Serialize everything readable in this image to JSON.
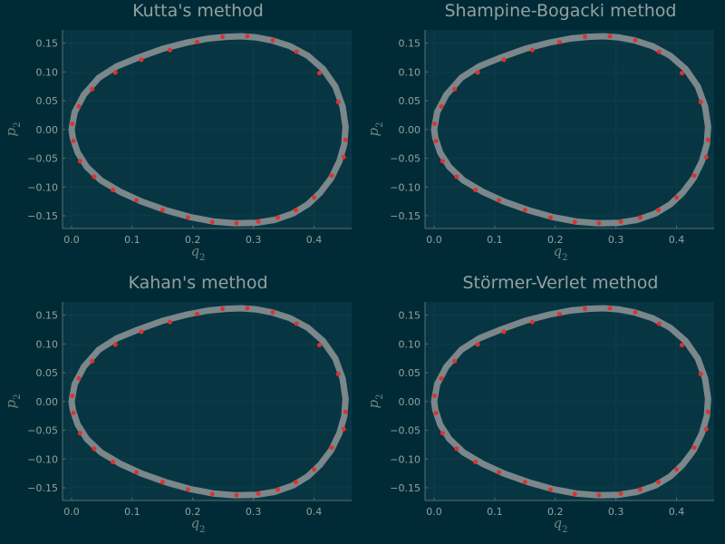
{
  "chart_data": [
    {
      "type": "line",
      "title": "Kutta's method",
      "xlabel": "q",
      "xlabel_sub": "2",
      "ylabel": "p",
      "ylabel_sub": "2",
      "xlim": [
        -0.015,
        0.462
      ],
      "ylim": [
        -0.172,
        0.173
      ],
      "xticks": [
        0.0,
        0.1,
        0.2,
        0.3,
        0.4
      ],
      "xtick_labels": [
        "0.0",
        "0.1",
        "0.2",
        "0.3",
        "0.4"
      ],
      "yticks": [
        -0.15,
        -0.1,
        -0.05,
        0.0,
        0.05,
        0.1,
        0.15
      ],
      "ytick_labels": [
        "−0.15",
        "−0.10",
        "−0.05",
        "0.00",
        "0.05",
        "0.10",
        "0.15"
      ],
      "grid": true,
      "series": [
        {
          "style": "thick-line",
          "color": "#7b878a",
          "x": [
            0.0,
            0.005,
            0.02,
            0.045,
            0.075,
            0.11,
            0.15,
            0.19,
            0.225,
            0.255,
            0.28,
            0.305,
            0.33,
            0.36,
            0.39,
            0.415,
            0.435,
            0.447,
            0.452,
            0.45,
            0.442,
            0.428,
            0.41,
            0.39,
            0.365,
            0.335,
            0.305,
            0.27,
            0.235,
            0.195,
            0.155,
            0.115,
            0.08,
            0.048,
            0.025,
            0.01,
            0.002,
            0.0
          ],
          "y": [
            0.0,
            0.03,
            0.06,
            0.09,
            0.11,
            0.125,
            0.14,
            0.151,
            0.158,
            0.161,
            0.162,
            0.16,
            0.155,
            0.145,
            0.128,
            0.105,
            0.075,
            0.04,
            0.005,
            -0.025,
            -0.055,
            -0.085,
            -0.11,
            -0.13,
            -0.146,
            -0.157,
            -0.162,
            -0.163,
            -0.16,
            -0.152,
            -0.14,
            -0.125,
            -0.108,
            -0.088,
            -0.065,
            -0.04,
            -0.015,
            0.0
          ]
        },
        {
          "style": "markers",
          "color": "#dc322f",
          "x": [
            0.001,
            0.012,
            0.034,
            0.072,
            0.115,
            0.162,
            0.207,
            0.249,
            0.29,
            0.332,
            0.371,
            0.409,
            0.44,
            0.452,
            0.449,
            0.429,
            0.4,
            0.37,
            0.34,
            0.308,
            0.272,
            0.232,
            0.192,
            0.15,
            0.107,
            0.068,
            0.037,
            0.014,
            0.003
          ],
          "y": [
            0.01,
            0.04,
            0.07,
            0.099,
            0.121,
            0.138,
            0.152,
            0.161,
            0.162,
            0.155,
            0.135,
            0.098,
            0.048,
            -0.018,
            -0.048,
            -0.08,
            -0.118,
            -0.14,
            -0.153,
            -0.16,
            -0.163,
            -0.161,
            -0.153,
            -0.14,
            -0.123,
            -0.105,
            -0.082,
            -0.055,
            -0.02
          ]
        }
      ]
    },
    {
      "type": "line",
      "title": "Shampine-Bogacki method",
      "xlabel": "q",
      "xlabel_sub": "2",
      "ylabel": "p",
      "ylabel_sub": "2",
      "xlim": [
        -0.015,
        0.462
      ],
      "ylim": [
        -0.172,
        0.173
      ],
      "xticks": [
        0.0,
        0.1,
        0.2,
        0.3,
        0.4
      ],
      "xtick_labels": [
        "0.0",
        "0.1",
        "0.2",
        "0.3",
        "0.4"
      ],
      "yticks": [
        -0.15,
        -0.1,
        -0.05,
        0.0,
        0.05,
        0.1,
        0.15
      ],
      "ytick_labels": [
        "−0.15",
        "−0.10",
        "−0.05",
        "0.00",
        "0.05",
        "0.10",
        "0.15"
      ],
      "grid": true,
      "series": [
        {
          "style": "thick-line",
          "color": "#7b878a",
          "x": [
            0.0,
            0.005,
            0.02,
            0.045,
            0.075,
            0.11,
            0.15,
            0.19,
            0.225,
            0.255,
            0.28,
            0.305,
            0.33,
            0.36,
            0.39,
            0.415,
            0.435,
            0.447,
            0.452,
            0.45,
            0.442,
            0.428,
            0.41,
            0.39,
            0.365,
            0.335,
            0.305,
            0.27,
            0.235,
            0.195,
            0.155,
            0.115,
            0.08,
            0.048,
            0.025,
            0.01,
            0.002,
            0.0
          ],
          "y": [
            0.0,
            0.03,
            0.06,
            0.09,
            0.11,
            0.125,
            0.14,
            0.151,
            0.158,
            0.161,
            0.162,
            0.16,
            0.155,
            0.145,
            0.128,
            0.105,
            0.075,
            0.04,
            0.005,
            -0.025,
            -0.055,
            -0.085,
            -0.11,
            -0.13,
            -0.146,
            -0.157,
            -0.162,
            -0.163,
            -0.16,
            -0.152,
            -0.14,
            -0.125,
            -0.108,
            -0.088,
            -0.065,
            -0.04,
            -0.015,
            0.0
          ]
        },
        {
          "style": "markers",
          "color": "#dc322f",
          "x": [
            0.001,
            0.012,
            0.034,
            0.072,
            0.115,
            0.162,
            0.207,
            0.249,
            0.29,
            0.332,
            0.371,
            0.409,
            0.44,
            0.452,
            0.449,
            0.429,
            0.4,
            0.37,
            0.34,
            0.308,
            0.272,
            0.232,
            0.192,
            0.15,
            0.107,
            0.068,
            0.037,
            0.014,
            0.003
          ],
          "y": [
            0.01,
            0.04,
            0.07,
            0.099,
            0.121,
            0.138,
            0.152,
            0.161,
            0.162,
            0.155,
            0.135,
            0.098,
            0.048,
            -0.018,
            -0.048,
            -0.08,
            -0.118,
            -0.14,
            -0.153,
            -0.16,
            -0.163,
            -0.161,
            -0.153,
            -0.14,
            -0.123,
            -0.105,
            -0.082,
            -0.055,
            -0.02
          ]
        }
      ]
    },
    {
      "type": "line",
      "title": "Kahan's method",
      "xlabel": "q",
      "xlabel_sub": "2",
      "ylabel": "p",
      "ylabel_sub": "2",
      "xlim": [
        -0.015,
        0.462
      ],
      "ylim": [
        -0.172,
        0.173
      ],
      "xticks": [
        0.0,
        0.1,
        0.2,
        0.3,
        0.4
      ],
      "xtick_labels": [
        "0.0",
        "0.1",
        "0.2",
        "0.3",
        "0.4"
      ],
      "yticks": [
        -0.15,
        -0.1,
        -0.05,
        0.0,
        0.05,
        0.1,
        0.15
      ],
      "ytick_labels": [
        "−0.15",
        "−0.10",
        "−0.05",
        "0.00",
        "0.05",
        "0.10",
        "0.15"
      ],
      "grid": true,
      "series": [
        {
          "style": "thick-line",
          "color": "#7b878a",
          "x": [
            0.0,
            0.005,
            0.02,
            0.045,
            0.075,
            0.11,
            0.15,
            0.19,
            0.225,
            0.255,
            0.28,
            0.305,
            0.33,
            0.36,
            0.39,
            0.415,
            0.435,
            0.447,
            0.452,
            0.45,
            0.442,
            0.428,
            0.41,
            0.39,
            0.365,
            0.335,
            0.305,
            0.27,
            0.235,
            0.195,
            0.155,
            0.115,
            0.08,
            0.048,
            0.025,
            0.01,
            0.002,
            0.0
          ],
          "y": [
            0.0,
            0.03,
            0.06,
            0.09,
            0.11,
            0.125,
            0.14,
            0.151,
            0.158,
            0.161,
            0.162,
            0.16,
            0.155,
            0.145,
            0.128,
            0.105,
            0.075,
            0.04,
            0.005,
            -0.025,
            -0.055,
            -0.085,
            -0.11,
            -0.13,
            -0.146,
            -0.157,
            -0.162,
            -0.163,
            -0.16,
            -0.152,
            -0.14,
            -0.125,
            -0.108,
            -0.088,
            -0.065,
            -0.04,
            -0.015,
            0.0
          ]
        },
        {
          "style": "markers",
          "color": "#dc322f",
          "x": [
            0.001,
            0.012,
            0.034,
            0.072,
            0.115,
            0.162,
            0.207,
            0.249,
            0.29,
            0.332,
            0.371,
            0.409,
            0.44,
            0.452,
            0.449,
            0.429,
            0.4,
            0.37,
            0.34,
            0.308,
            0.272,
            0.232,
            0.192,
            0.15,
            0.107,
            0.068,
            0.037,
            0.014,
            0.003
          ],
          "y": [
            0.01,
            0.04,
            0.07,
            0.099,
            0.121,
            0.138,
            0.152,
            0.161,
            0.162,
            0.155,
            0.135,
            0.098,
            0.048,
            -0.018,
            -0.048,
            -0.08,
            -0.118,
            -0.14,
            -0.153,
            -0.16,
            -0.163,
            -0.161,
            -0.153,
            -0.14,
            -0.123,
            -0.105,
            -0.082,
            -0.055,
            -0.02
          ]
        }
      ]
    },
    {
      "type": "line",
      "title": "Störmer-Verlet method",
      "xlabel": "q",
      "xlabel_sub": "2",
      "ylabel": "p",
      "ylabel_sub": "2",
      "xlim": [
        -0.015,
        0.462
      ],
      "ylim": [
        -0.172,
        0.173
      ],
      "xticks": [
        0.0,
        0.1,
        0.2,
        0.3,
        0.4
      ],
      "xtick_labels": [
        "0.0",
        "0.1",
        "0.2",
        "0.3",
        "0.4"
      ],
      "yticks": [
        -0.15,
        -0.1,
        -0.05,
        0.0,
        0.05,
        0.1,
        0.15
      ],
      "ytick_labels": [
        "−0.15",
        "−0.10",
        "−0.05",
        "0.00",
        "0.05",
        "0.10",
        "0.15"
      ],
      "grid": true,
      "series": [
        {
          "style": "thick-line",
          "color": "#7b878a",
          "x": [
            0.0,
            0.005,
            0.02,
            0.045,
            0.075,
            0.11,
            0.15,
            0.19,
            0.225,
            0.255,
            0.28,
            0.305,
            0.33,
            0.36,
            0.39,
            0.415,
            0.435,
            0.447,
            0.452,
            0.45,
            0.442,
            0.428,
            0.41,
            0.39,
            0.365,
            0.335,
            0.305,
            0.27,
            0.235,
            0.195,
            0.155,
            0.115,
            0.08,
            0.048,
            0.025,
            0.01,
            0.002,
            0.0
          ],
          "y": [
            0.0,
            0.03,
            0.06,
            0.09,
            0.11,
            0.125,
            0.14,
            0.151,
            0.158,
            0.161,
            0.162,
            0.16,
            0.155,
            0.145,
            0.128,
            0.105,
            0.075,
            0.04,
            0.005,
            -0.025,
            -0.055,
            -0.085,
            -0.11,
            -0.13,
            -0.146,
            -0.157,
            -0.162,
            -0.163,
            -0.16,
            -0.152,
            -0.14,
            -0.125,
            -0.108,
            -0.088,
            -0.065,
            -0.04,
            -0.015,
            0.0
          ]
        },
        {
          "style": "markers",
          "color": "#dc322f",
          "x": [
            0.001,
            0.012,
            0.034,
            0.072,
            0.115,
            0.162,
            0.207,
            0.249,
            0.29,
            0.332,
            0.371,
            0.409,
            0.44,
            0.452,
            0.449,
            0.429,
            0.4,
            0.37,
            0.34,
            0.308,
            0.272,
            0.232,
            0.192,
            0.15,
            0.107,
            0.068,
            0.037,
            0.014,
            0.003
          ],
          "y": [
            0.01,
            0.04,
            0.07,
            0.099,
            0.121,
            0.138,
            0.152,
            0.161,
            0.162,
            0.155,
            0.135,
            0.098,
            0.048,
            -0.018,
            -0.048,
            -0.08,
            -0.118,
            -0.14,
            -0.153,
            -0.16,
            -0.163,
            -0.161,
            -0.153,
            -0.14,
            -0.123,
            -0.105,
            -0.082,
            -0.055,
            -0.02
          ]
        }
      ]
    }
  ],
  "theme": {
    "background": "#002b36",
    "plot_area": "#073642",
    "grid": "#0f3d4a",
    "axis": "#586e75",
    "text": "#93a1a1"
  }
}
